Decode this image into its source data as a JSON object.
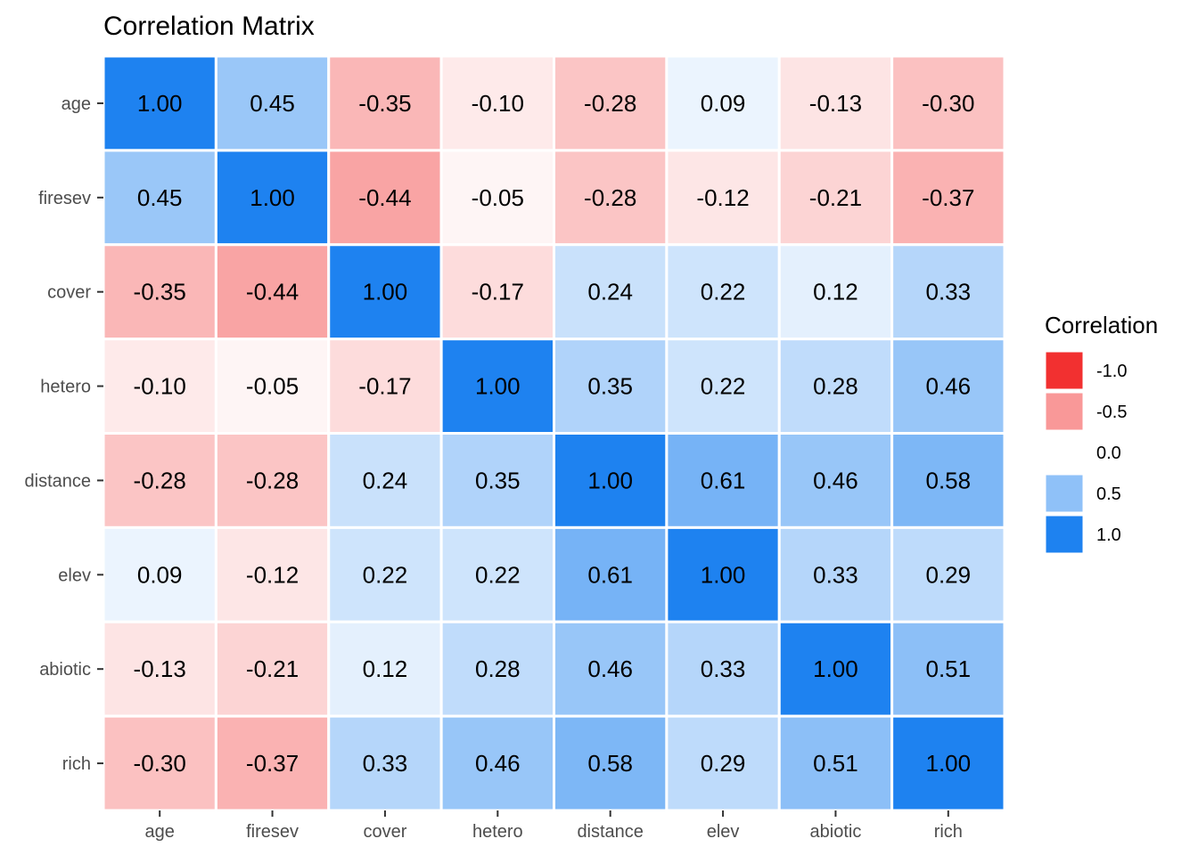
{
  "chart_data": {
    "type": "heatmap",
    "title": "Correlation Matrix",
    "xlabel": "",
    "ylabel": "",
    "variables": [
      "age",
      "firesev",
      "cover",
      "hetero",
      "distance",
      "elev",
      "abiotic",
      "rich"
    ],
    "matrix": [
      [
        1.0,
        0.45,
        -0.35,
        -0.1,
        -0.28,
        0.09,
        -0.13,
        -0.3
      ],
      [
        0.45,
        1.0,
        -0.44,
        -0.05,
        -0.28,
        -0.12,
        -0.21,
        -0.37
      ],
      [
        -0.35,
        -0.44,
        1.0,
        -0.17,
        0.24,
        0.22,
        0.12,
        0.33
      ],
      [
        -0.1,
        -0.05,
        -0.17,
        1.0,
        0.35,
        0.22,
        0.28,
        0.46
      ],
      [
        -0.28,
        -0.28,
        0.24,
        0.35,
        1.0,
        0.61,
        0.46,
        0.58
      ],
      [
        0.09,
        -0.12,
        0.22,
        0.22,
        0.61,
        1.0,
        0.33,
        0.29
      ],
      [
        -0.13,
        -0.21,
        0.12,
        0.28,
        0.46,
        0.33,
        1.0,
        0.51
      ],
      [
        -0.3,
        -0.37,
        0.33,
        0.46,
        0.58,
        0.29,
        0.51,
        1.0
      ]
    ],
    "color_scale": {
      "low": "#f23030",
      "mid": "#ffffff",
      "high": "#1e82f0",
      "limits": [
        -1,
        1
      ]
    },
    "legend": {
      "title": "Correlation",
      "position": "right",
      "entries": [
        {
          "label": "-1.0",
          "value": -1.0
        },
        {
          "label": "-0.5",
          "value": -0.5
        },
        {
          "label": "0.0",
          "value": 0.0
        },
        {
          "label": "0.5",
          "value": 0.5
        },
        {
          "label": "1.0",
          "value": 1.0
        }
      ]
    },
    "grid": false
  }
}
